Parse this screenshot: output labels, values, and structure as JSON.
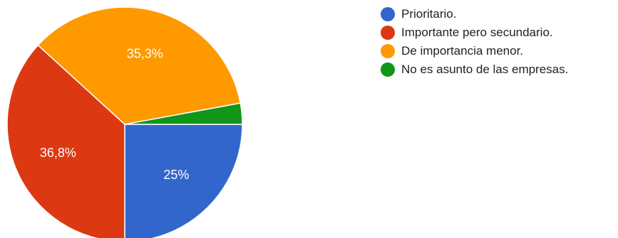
{
  "chart_data": {
    "type": "pie",
    "legend_position": "right",
    "series": [
      {
        "name": "Prioritario.",
        "value": 25,
        "label": "25%",
        "color": "#3366cc"
      },
      {
        "name": "Importante pero secundario.",
        "value": 36.8,
        "label": "36,8%",
        "color": "#dc3912"
      },
      {
        "name": "De importancia menor.",
        "value": 35.3,
        "label": "35,3%",
        "color": "#ff9900"
      },
      {
        "name": "No es asunto de las empresas.",
        "value": 2.9,
        "label": "",
        "color": "#109618"
      }
    ]
  }
}
